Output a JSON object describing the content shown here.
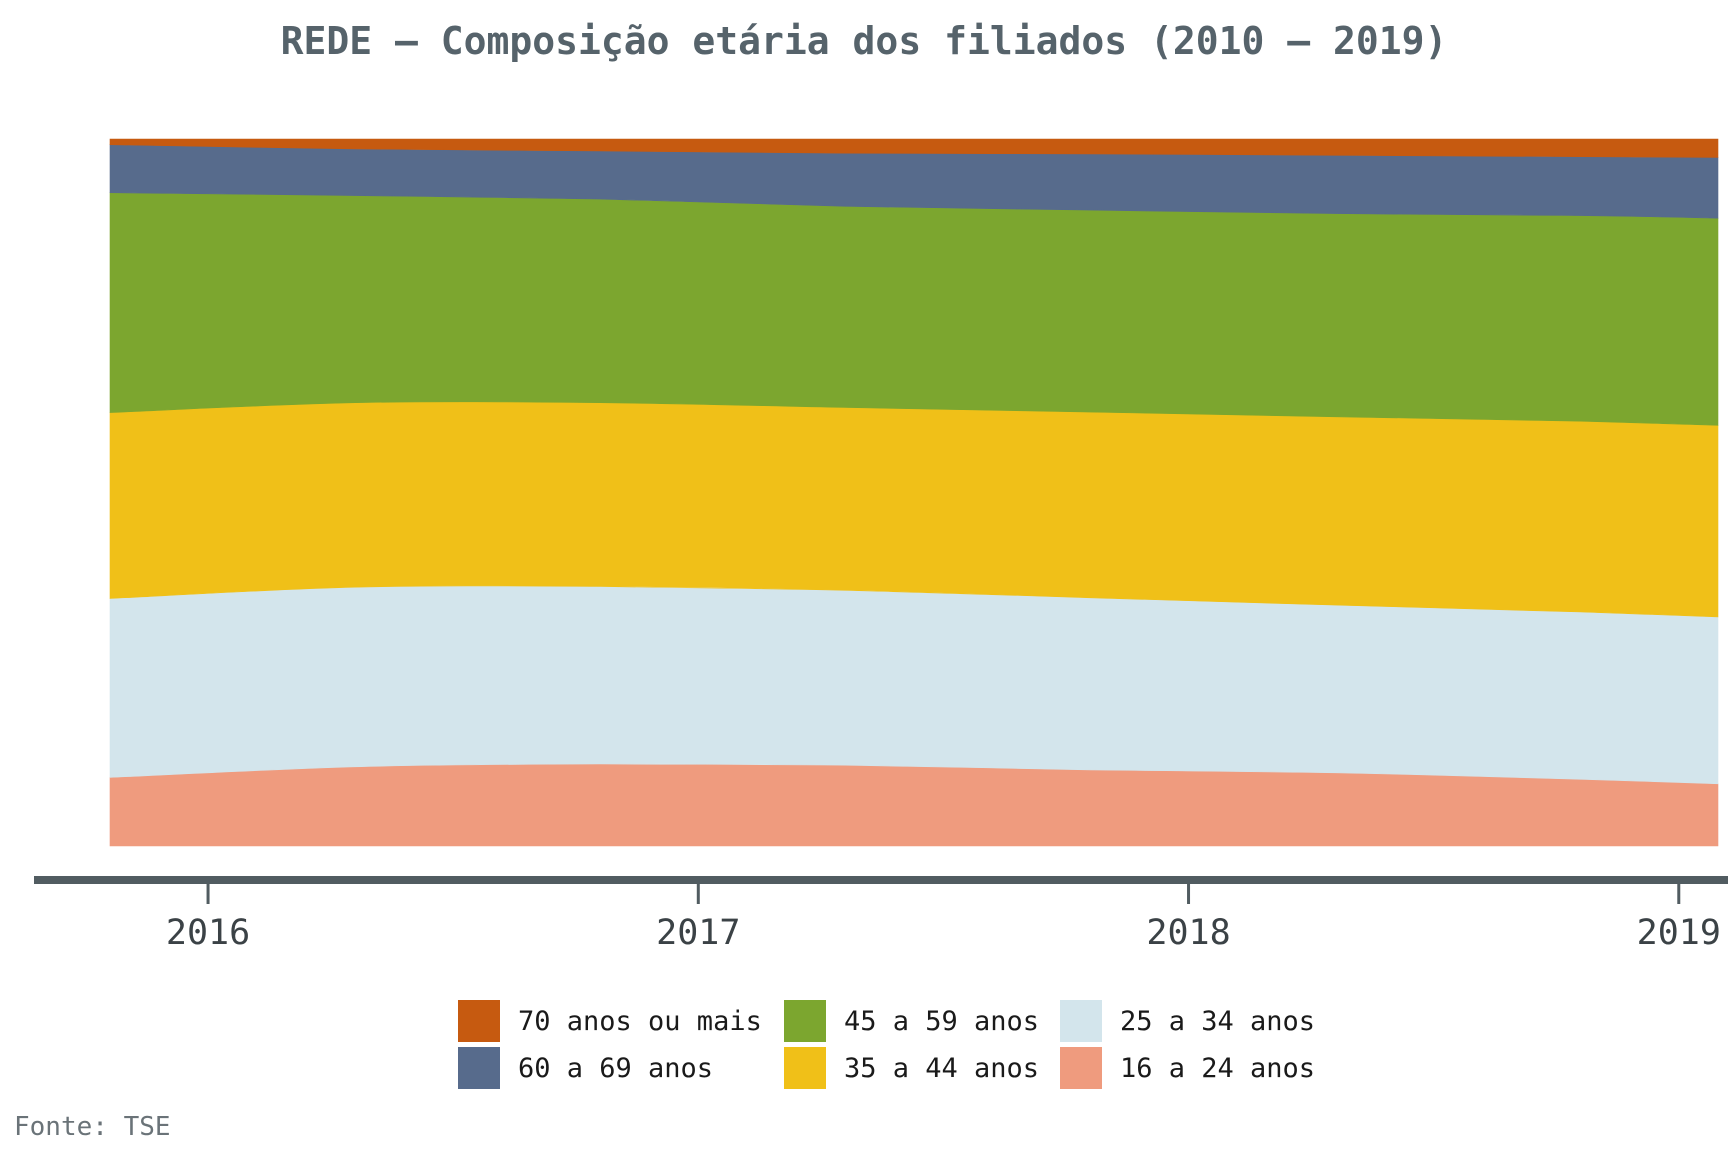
{
  "title": "REDE – Composição etária dos filiados (2010 – 2019)",
  "source": "Fonte: TSE",
  "chart_data": {
    "type": "area",
    "stacked": true,
    "normalized": true,
    "grid": false,
    "legend_position": "bottom",
    "x": [
      2015.8,
      2016.3,
      2016.8,
      2017.3,
      2017.8,
      2018.3,
      2018.8,
      2019.08
    ],
    "xlim": [
      2015.8,
      2019.08
    ],
    "ylim": [
      0,
      1
    ],
    "tick_labels": [
      "2016",
      "2017",
      "2018",
      "2019"
    ],
    "series": [
      {
        "name": "16 a 24 anos",
        "color": "#ef9b7e",
        "values": [
          0.097,
          0.112,
          0.116,
          0.114,
          0.107,
          0.103,
          0.094,
          0.088
        ]
      },
      {
        "name": "25 a 34 anos",
        "color": "#d3e5ec",
        "values": [
          0.253,
          0.254,
          0.251,
          0.247,
          0.242,
          0.236,
          0.236,
          0.236
        ]
      },
      {
        "name": "35 a 44 anos",
        "color": "#f0c018",
        "values": [
          0.263,
          0.261,
          0.26,
          0.258,
          0.261,
          0.265,
          0.269,
          0.271
        ]
      },
      {
        "name": "45 a 59 anos",
        "color": "#7ca62f",
        "values": [
          0.311,
          0.293,
          0.288,
          0.284,
          0.284,
          0.286,
          0.29,
          0.293
        ]
      },
      {
        "name": "60 a 69 anos",
        "color": "#576b8c",
        "values": [
          0.068,
          0.066,
          0.068,
          0.075,
          0.079,
          0.082,
          0.083,
          0.086
        ]
      },
      {
        "name": "70 anos ou mais",
        "color": "#c65a10",
        "values": [
          0.008,
          0.014,
          0.017,
          0.02,
          0.021,
          0.023,
          0.025,
          0.026
        ]
      }
    ],
    "legend_order": [
      "70 anos ou mais",
      "60 a 69 anos",
      "45 a 59 anos",
      "35 a 44 anos",
      "25 a 34 anos",
      "16 a 24 anos"
    ]
  }
}
